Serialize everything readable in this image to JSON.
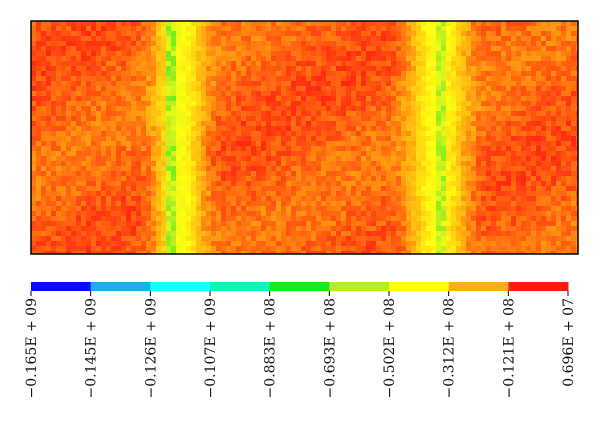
{
  "chart_data": {
    "type": "heatmap",
    "description_note": "",
    "colorbar": {
      "colors": [
        "#0a0aff",
        "#19b0ee",
        "#17ffff",
        "#18f0b8",
        "#10ee10",
        "#b6ee22",
        "#ffff10",
        "#ffb010",
        "#ff1a10"
      ],
      "tick_labels": [
        "−0.165E + 09",
        "−0.145E + 09",
        "−0.126E + 09",
        "−0.107E + 09",
        "−0.883E + 08",
        "−0.693E + 08",
        "−0.502E + 08",
        "−0.312E + 08",
        "−0.121E + 08",
        "0.696E + 07"
      ],
      "tick_values": [
        -165000000,
        -145000000,
        -126000000,
        -107000000,
        -88300000,
        -69300000,
        -50200000,
        -31200000,
        -12100000,
        6960000
      ]
    },
    "field": {
      "range": [
        -165000000,
        6960000
      ],
      "background_level": 0.94,
      "bands": [
        {
          "center": 0.27,
          "width": 0.06,
          "level": 0.74
        },
        {
          "center": 0.74,
          "width": 0.07,
          "level": 0.74
        }
      ],
      "edge_lines": [
        {
          "pos": 0.255,
          "level": 0.6
        },
        {
          "pos": 0.745,
          "level": 0.62
        }
      ]
    }
  }
}
